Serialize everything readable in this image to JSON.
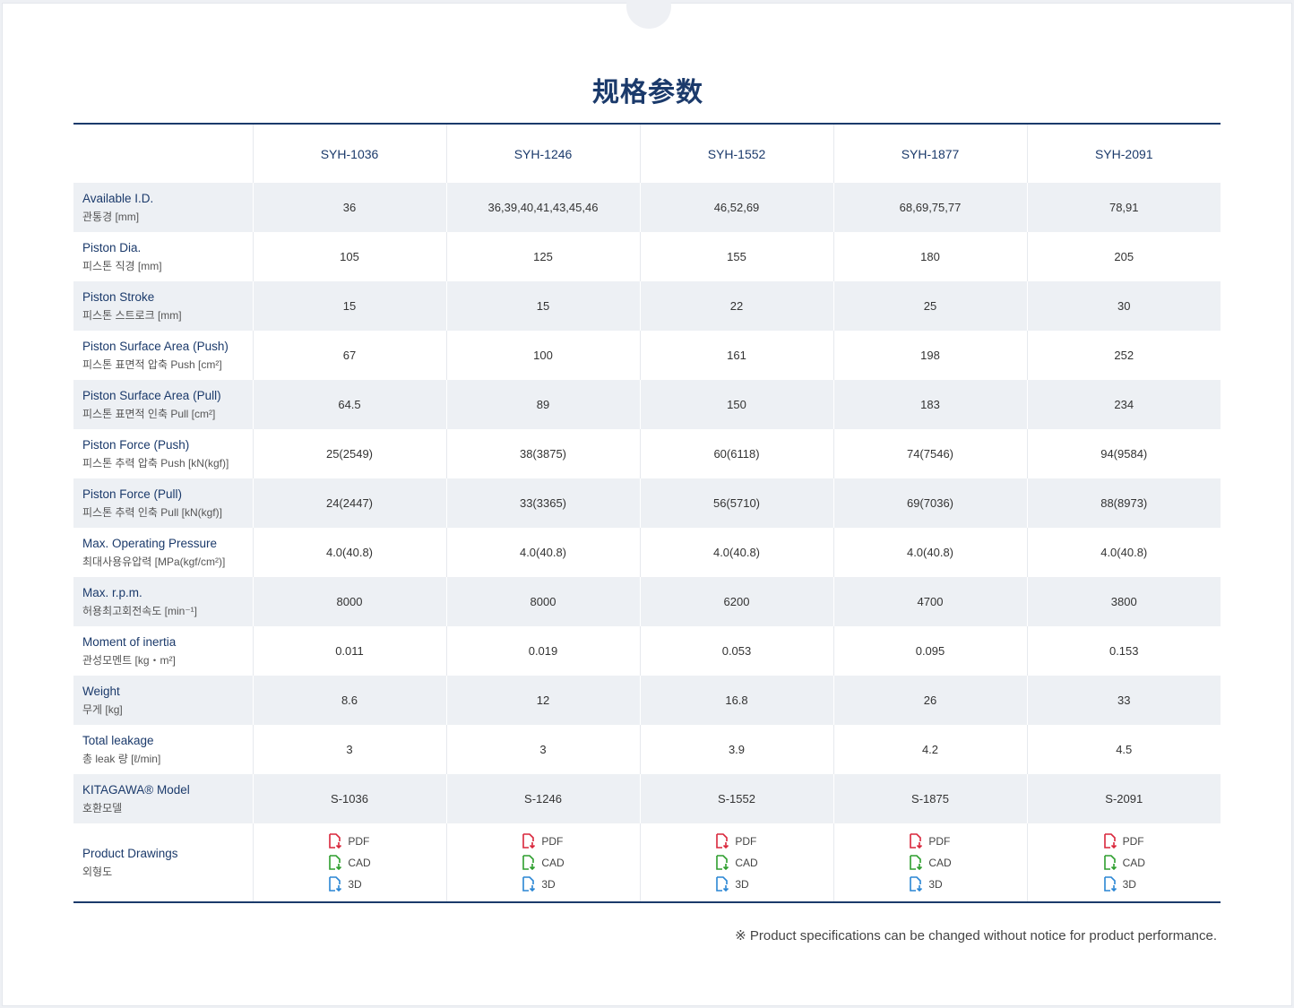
{
  "title": "规格参数",
  "columns": [
    "SYH-1036",
    "SYH-1246",
    "SYH-1552",
    "SYH-1877",
    "SYH-2091"
  ],
  "rows": [
    {
      "en": "Available I.D.",
      "ko": "관통경 [mm]",
      "values": [
        "36",
        "36,39,40,41,43,45,46",
        "46,52,69",
        "68,69,75,77",
        "78,91"
      ]
    },
    {
      "en": "Piston Dia.",
      "ko": "피스톤 직경 [mm]",
      "values": [
        "105",
        "125",
        "155",
        "180",
        "205"
      ]
    },
    {
      "en": "Piston Stroke",
      "ko": "피스톤 스트로크 [mm]",
      "values": [
        "15",
        "15",
        "22",
        "25",
        "30"
      ]
    },
    {
      "en": "Piston Surface Area (Push)",
      "ko": "피스톤 표면적 압축 Push [cm²]",
      "values": [
        "67",
        "100",
        "161",
        "198",
        "252"
      ]
    },
    {
      "en": "Piston Surface Area (Pull)",
      "ko": "피스톤 표면적 인축 Pull [cm²]",
      "values": [
        "64.5",
        "89",
        "150",
        "183",
        "234"
      ]
    },
    {
      "en": "Piston Force (Push)",
      "ko": "피스톤 추력 압축 Push [kN(kgf)]",
      "values": [
        "25(2549)",
        "38(3875)",
        "60(6118)",
        "74(7546)",
        "94(9584)"
      ]
    },
    {
      "en": "Piston Force (Pull)",
      "ko": "피스톤 추력 인축 Pull [kN(kgf)]",
      "values": [
        "24(2447)",
        "33(3365)",
        "56(5710)",
        "69(7036)",
        "88(8973)"
      ]
    },
    {
      "en": "Max. Operating Pressure",
      "ko": "최대사용유압력 [MPa(kgf/cm²)]",
      "values": [
        "4.0(40.8)",
        "4.0(40.8)",
        "4.0(40.8)",
        "4.0(40.8)",
        "4.0(40.8)"
      ]
    },
    {
      "en": "Max. r.p.m.",
      "ko": "허용최고회전속도 [min⁻¹]",
      "values": [
        "8000",
        "8000",
        "6200",
        "4700",
        "3800"
      ]
    },
    {
      "en": "Moment of inertia",
      "ko": "관성모멘트 [kg・m²]",
      "values": [
        "0.011",
        "0.019",
        "0.053",
        "0.095",
        "0.153"
      ]
    },
    {
      "en": "Weight",
      "ko": "무게 [kg]",
      "values": [
        "8.6",
        "12",
        "16.8",
        "26",
        "33"
      ]
    },
    {
      "en": "Total leakage",
      "ko": "총 leak 량 [ℓ/min]",
      "values": [
        "3",
        "3",
        "3.9",
        "4.2",
        "4.5"
      ]
    },
    {
      "en": "KITAGAWA® Model",
      "ko": "호환모델",
      "values": [
        "S-1036",
        "S-1246",
        "S-1552",
        "S-1875",
        "S-2091"
      ]
    }
  ],
  "drawings": {
    "en": "Product Drawings",
    "ko": "외형도",
    "links": [
      {
        "label": "PDF",
        "icon": "pdf-download-icon",
        "color": "#d9263b"
      },
      {
        "label": "CAD",
        "icon": "cad-download-icon",
        "color": "#2e9e2e"
      },
      {
        "label": "3D",
        "icon": "3d-download-icon",
        "color": "#2a86d4"
      }
    ]
  },
  "note": "※ Product specifications can be changed without notice for product performance."
}
